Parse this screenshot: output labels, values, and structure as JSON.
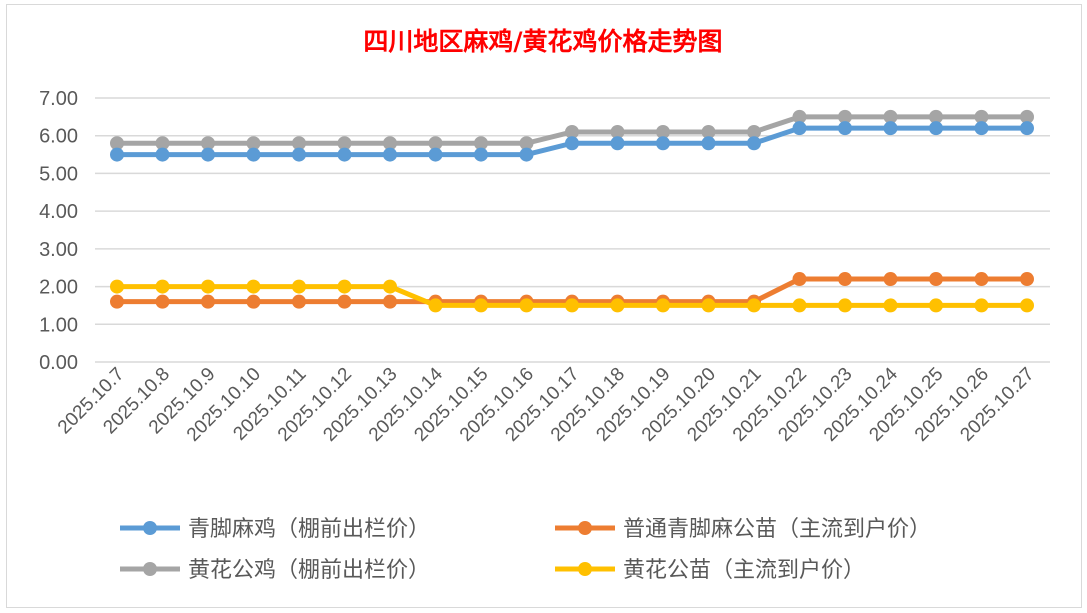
{
  "chart_data": {
    "type": "line",
    "title": "四川地区麻鸡/黄花鸡价格走势图",
    "xlabel": "",
    "ylabel": "",
    "ylim": [
      0,
      7
    ],
    "yticks": [
      "0.00",
      "1.00",
      "2.00",
      "3.00",
      "4.00",
      "5.00",
      "6.00",
      "7.00"
    ],
    "grid": true,
    "legend_position": "bottom",
    "categories": [
      "2025.10.7",
      "2025.10.8",
      "2025.10.9",
      "2025.10.10",
      "2025.10.11",
      "2025.10.12",
      "2025.10.13",
      "2025.10.14",
      "2025.10.15",
      "2025.10.16",
      "2025.10.17",
      "2025.10.18",
      "2025.10.19",
      "2025.10.20",
      "2025.10.21",
      "2025.10.22",
      "2025.10.23",
      "2025.10.24",
      "2025.10.25",
      "2025.10.26",
      "2025.10.27"
    ],
    "series": [
      {
        "name": "青脚麻鸡（棚前出栏价）",
        "color": "#5b9bd5",
        "values": [
          5.5,
          5.5,
          5.5,
          5.5,
          5.5,
          5.5,
          5.5,
          5.5,
          5.5,
          5.5,
          5.8,
          5.8,
          5.8,
          5.8,
          5.8,
          6.2,
          6.2,
          6.2,
          6.2,
          6.2,
          6.2
        ]
      },
      {
        "name": "普通青脚麻公苗（主流到户价）",
        "color": "#ed7d31",
        "values": [
          1.6,
          1.6,
          1.6,
          1.6,
          1.6,
          1.6,
          1.6,
          1.6,
          1.6,
          1.6,
          1.6,
          1.6,
          1.6,
          1.6,
          1.6,
          2.2,
          2.2,
          2.2,
          2.2,
          2.2,
          2.2
        ]
      },
      {
        "name": "黄花公鸡（棚前出栏价）",
        "color": "#a5a5a5",
        "values": [
          5.8,
          5.8,
          5.8,
          5.8,
          5.8,
          5.8,
          5.8,
          5.8,
          5.8,
          5.8,
          6.1,
          6.1,
          6.1,
          6.1,
          6.1,
          6.5,
          6.5,
          6.5,
          6.5,
          6.5,
          6.5
        ]
      },
      {
        "name": "黄花公苗（主流到户价）",
        "color": "#ffc000",
        "values": [
          2.0,
          2.0,
          2.0,
          2.0,
          2.0,
          2.0,
          2.0,
          1.5,
          1.5,
          1.5,
          1.5,
          1.5,
          1.5,
          1.5,
          1.5,
          1.5,
          1.5,
          1.5,
          1.5,
          1.5,
          1.5
        ]
      }
    ]
  }
}
